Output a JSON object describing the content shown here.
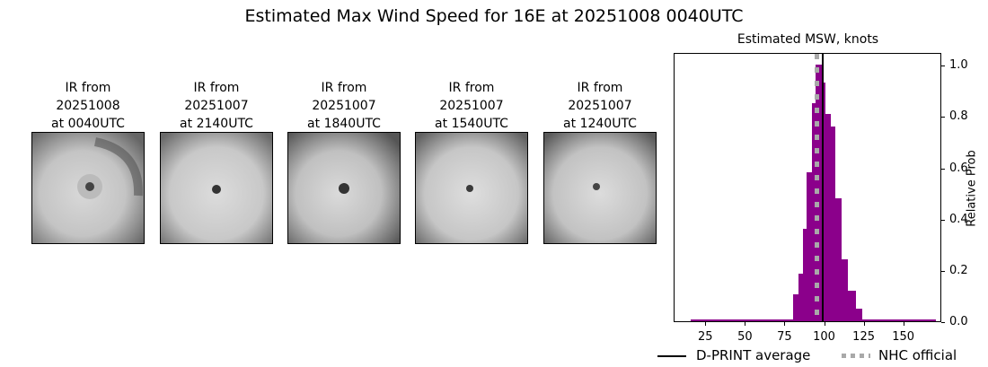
{
  "figure": {
    "title": "Estimated Max Wind Speed for 16E at 20251008 0040UTC"
  },
  "thumbnails": [
    {
      "line1": "IR from",
      "line2": "20251008",
      "line3": "at 0040UTC"
    },
    {
      "line1": "IR from",
      "line2": "20251007",
      "line3": "at 2140UTC"
    },
    {
      "line1": "IR from",
      "line2": "20251007",
      "line3": "at 1840UTC"
    },
    {
      "line1": "IR from",
      "line2": "20251007",
      "line3": "at 1540UTC"
    },
    {
      "line1": "IR from",
      "line2": "20251007",
      "line3": "at 1240UTC"
    }
  ],
  "chart_data": {
    "type": "bar",
    "title": "Estimated MSW, knots",
    "xlabel": "",
    "ylabel": "Relative Prob",
    "xlim": [
      5,
      174
    ],
    "ylim": [
      0,
      1.05
    ],
    "xticks": [
      25,
      50,
      75,
      100,
      125,
      150
    ],
    "yticks": [
      0.0,
      0.2,
      0.4,
      0.6,
      0.8,
      1.0
    ],
    "ytick_labels": [
      "0.0",
      "0.2",
      "0.4",
      "0.6",
      "0.8",
      "1.0"
    ],
    "y_axis_side": "right",
    "grid": false,
    "bar_color": "#8b008b",
    "tail_range": [
      15,
      170
    ],
    "bins": [
      {
        "x0": 80,
        "x1": 83,
        "value": 0.105
      },
      {
        "x0": 83,
        "x1": 86,
        "value": 0.185
      },
      {
        "x0": 86,
        "x1": 88.6,
        "value": 0.36
      },
      {
        "x0": 88.6,
        "x1": 92,
        "value": 0.58
      },
      {
        "x0": 92,
        "x1": 94.3,
        "value": 0.85
      },
      {
        "x0": 94.3,
        "x1": 98.3,
        "value": 1.0
      },
      {
        "x0": 98.3,
        "x1": 100,
        "value": 0.93
      },
      {
        "x0": 100,
        "x1": 103.4,
        "value": 0.81
      },
      {
        "x0": 103.4,
        "x1": 106,
        "value": 0.76
      },
      {
        "x0": 106,
        "x1": 110,
        "value": 0.48
      },
      {
        "x0": 110,
        "x1": 114,
        "value": 0.24
      },
      {
        "x0": 114,
        "x1": 119,
        "value": 0.12
      },
      {
        "x0": 119,
        "x1": 123,
        "value": 0.05
      }
    ],
    "lines": [
      {
        "name": "D-PRINT average",
        "x": 98.5,
        "style": "solid",
        "color": "#000000"
      },
      {
        "name": "NHC official",
        "x": 95,
        "style": "dotted",
        "color": "#a9a9a9"
      }
    ],
    "legend": {
      "position": "bottom",
      "entries": [
        "D-PRINT average",
        "NHC official"
      ]
    }
  }
}
